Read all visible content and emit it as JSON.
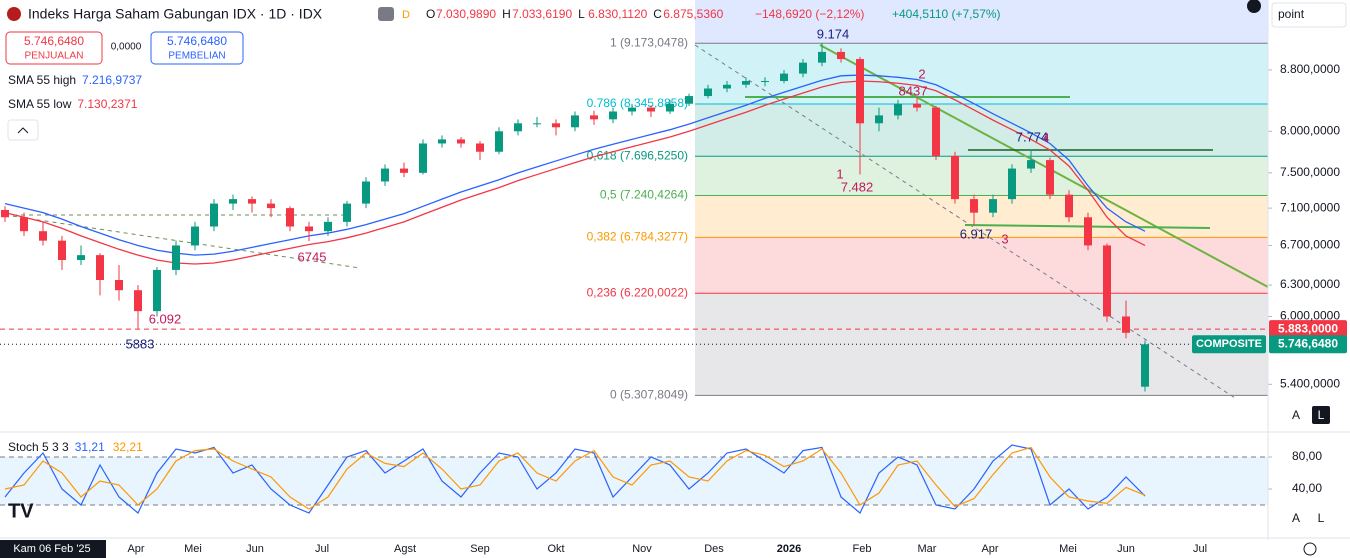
{
  "ui": {
    "symbol": "Indeks Harga Saham Gabungan IDX · 1D · IDX",
    "badge": "D",
    "ohlc": [
      {
        "k": "O",
        "v": "7.030,9890"
      },
      {
        "k": "H",
        "v": "7.033,6190"
      },
      {
        "k": "L",
        "v": "6.830,1120"
      },
      {
        "k": "C",
        "v": "6.875,5360"
      }
    ],
    "change": "−148,6920 (−2,12%)",
    "change2": "+404,5110 (+7,57%)",
    "sell_price": "5.746,6480",
    "sell_label": "PENJUALAN",
    "spread": "0,0000",
    "buy_price": "5.746,6480",
    "buy_label": "PEMBELIAN",
    "menu": "point",
    "buttons": [
      "A",
      "L"
    ]
  },
  "chart_data": {
    "type": "candlestick",
    "log": true,
    "up_color": "#089981",
    "down_color": "#f23645",
    "ylim": [
      5030,
      9810
    ],
    "yticks": [
      {
        "value": 8800,
        "label": "8.800,0000"
      },
      {
        "value": 8000,
        "label": "8.000,0000"
      },
      {
        "value": 7500,
        "label": "7.500,0000"
      },
      {
        "value": 7100,
        "label": "7.100,0000"
      },
      {
        "value": 6700,
        "label": "6.700,0000"
      },
      {
        "value": 6300,
        "label": "6.300,0000"
      },
      {
        "value": 6000,
        "label": "6.000,0000"
      },
      {
        "value": 5400,
        "label": "5.400,0000"
      }
    ],
    "x_labels": [
      "Kam 06 Feb '25",
      "Apr",
      "Mei",
      "Jun",
      "Jul",
      "Agst",
      "Sep",
      "Okt",
      "Nov",
      "Des",
      "2026",
      "Feb",
      "Mar",
      "Apr",
      "Mei",
      "Jun",
      "Jul"
    ],
    "candles": [
      [
        7080,
        7120,
        6950,
        7000
      ],
      [
        7000,
        7050,
        6800,
        6850
      ],
      [
        6850,
        6950,
        6700,
        6750
      ],
      [
        6750,
        6800,
        6450,
        6550
      ],
      [
        6550,
        6700,
        6500,
        6600
      ],
      [
        6600,
        6620,
        6200,
        6350
      ],
      [
        6350,
        6500,
        6150,
        6250
      ],
      [
        6250,
        6300,
        5883,
        6050
      ],
      [
        6050,
        6480,
        6000,
        6450
      ],
      [
        6450,
        6750,
        6400,
        6700
      ],
      [
        6700,
        6950,
        6650,
        6900
      ],
      [
        6900,
        7200,
        6850,
        7150
      ],
      [
        7150,
        7250,
        7080,
        7200
      ],
      [
        7200,
        7230,
        7050,
        7150
      ],
      [
        7150,
        7200,
        7000,
        7100
      ],
      [
        7100,
        7120,
        6850,
        6900
      ],
      [
        6900,
        6950,
        6745,
        6850
      ],
      [
        6850,
        7000,
        6800,
        6950
      ],
      [
        6950,
        7180,
        6900,
        7150
      ],
      [
        7150,
        7450,
        7100,
        7400
      ],
      [
        7400,
        7600,
        7350,
        7550
      ],
      [
        7550,
        7620,
        7450,
        7500
      ],
      [
        7500,
        7900,
        7480,
        7850
      ],
      [
        7850,
        7950,
        7800,
        7900
      ],
      [
        7900,
        7930,
        7800,
        7850
      ],
      [
        7850,
        7880,
        7650,
        7750
      ],
      [
        7750,
        8050,
        7720,
        8000
      ],
      [
        8000,
        8150,
        7950,
        8100
      ],
      [
        8100,
        8180,
        8050,
        8100
      ],
      [
        8100,
        8150,
        7950,
        8050
      ],
      [
        8050,
        8250,
        8000,
        8200
      ],
      [
        8200,
        8260,
        8080,
        8150
      ],
      [
        8150,
        8300,
        8100,
        8250
      ],
      [
        8250,
        8350,
        8200,
        8300
      ],
      [
        8300,
        8330,
        8180,
        8250
      ],
      [
        8250,
        8400,
        8220,
        8350
      ],
      [
        8350,
        8480,
        8320,
        8450
      ],
      [
        8450,
        8600,
        8420,
        8550
      ],
      [
        8550,
        8650,
        8500,
        8600
      ],
      [
        8600,
        8700,
        8560,
        8650
      ],
      [
        8650,
        8700,
        8580,
        8650
      ],
      [
        8650,
        8800,
        8620,
        8750
      ],
      [
        8750,
        8950,
        8700,
        8900
      ],
      [
        8900,
        9174,
        8850,
        9050
      ],
      [
        9050,
        9100,
        8900,
        8950
      ],
      [
        8950,
        8980,
        7482,
        8100
      ],
      [
        8100,
        8300,
        8000,
        8200
      ],
      [
        8200,
        8400,
        8150,
        8350
      ],
      [
        8350,
        8437,
        8250,
        8300
      ],
      [
        8300,
        8320,
        7650,
        7700
      ],
      [
        7700,
        7750,
        7150,
        7200
      ],
      [
        7200,
        7250,
        6917,
        7050
      ],
      [
        7050,
        7250,
        7000,
        7200
      ],
      [
        7200,
        7600,
        7150,
        7550
      ],
      [
        7550,
        7774,
        7500,
        7650
      ],
      [
        7650,
        7680,
        7200,
        7250
      ],
      [
        7250,
        7300,
        6950,
        7000
      ],
      [
        7000,
        7050,
        6650,
        6700
      ],
      [
        6700,
        6720,
        5950,
        6000
      ],
      [
        6000,
        6150,
        5800,
        5850
      ],
      [
        5380,
        5780,
        5340,
        5746.648
      ]
    ],
    "series": [
      {
        "name": "SMA 55 high",
        "legend_value": "7.216,9737",
        "color": "#2962ff",
        "values": [
          7150,
          7100,
          7050,
          6980,
          6900,
          6830,
          6760,
          6700,
          6650,
          6620,
          6600,
          6610,
          6640,
          6680,
          6720,
          6760,
          6800,
          6830,
          6870,
          6920,
          6980,
          7040,
          7120,
          7200,
          7280,
          7350,
          7420,
          7500,
          7570,
          7640,
          7710,
          7780,
          7840,
          7900,
          7960,
          8020,
          8090,
          8170,
          8250,
          8330,
          8420,
          8500,
          8580,
          8660,
          8720,
          8730,
          8720,
          8700,
          8670,
          8600,
          8480,
          8350,
          8220,
          8100,
          7980,
          7850,
          7650,
          7350,
          7100,
          6950,
          6850
        ]
      },
      {
        "name": "SMA 55 low",
        "legend_value": "7.130,2371",
        "color": "#f23645",
        "values": [
          7050,
          7000,
          6950,
          6880,
          6800,
          6730,
          6660,
          6600,
          6550,
          6520,
          6510,
          6520,
          6550,
          6590,
          6630,
          6670,
          6710,
          6740,
          6780,
          6830,
          6890,
          6950,
          7030,
          7110,
          7190,
          7260,
          7330,
          7410,
          7480,
          7550,
          7620,
          7690,
          7750,
          7810,
          7870,
          7930,
          8000,
          8080,
          8160,
          8240,
          8330,
          8410,
          8490,
          8570,
          8630,
          8650,
          8640,
          8620,
          8590,
          8520,
          8400,
          8270,
          8140,
          8020,
          7900,
          7770,
          7580,
          7300,
          7000,
          6800,
          6700
        ]
      }
    ],
    "fib": [
      {
        "value": 9173.0478,
        "label": "1 (9.173,0478)",
        "color": "#787b86"
      },
      {
        "value": 8345.8858,
        "label": "0.786 (8.345,8858)",
        "color": "#00bcd4"
      },
      {
        "value": 7696.525,
        "label": "0,618 (7.696,5250)",
        "color": "#089981"
      },
      {
        "value": 7240.4264,
        "label": "0,5 (7.240,4264)",
        "color": "#4caf50"
      },
      {
        "value": 6784.3277,
        "label": "0,382 (6.784,3277)",
        "color": "#ff9800"
      },
      {
        "value": 6220.0022,
        "label": "0,236 (6.220,0022)",
        "color": "#f23645"
      },
      {
        "value": 5307.8049,
        "label": "0 (5.307,8049)",
        "color": "#787b86"
      }
    ],
    "price_lines": [
      {
        "value": 5883,
        "label": "5.883,0000",
        "color": "#f23645"
      },
      {
        "value": 5746.648,
        "label": "5.746,6480",
        "name": "COMPOSITE",
        "color": "#089981"
      }
    ],
    "annotations": [
      {
        "text": "9.174",
        "color": "#1a237e"
      },
      {
        "text": "2",
        "color": "#c2185b"
      },
      {
        "text": "8437",
        "color": "#c2185b"
      },
      {
        "text": "1",
        "color": "#c2185b"
      },
      {
        "text": "7.482",
        "color": "#c2185b"
      },
      {
        "text": "7.774",
        "color": "#1a237e"
      },
      {
        "text": "4",
        "color": "#c2185b"
      },
      {
        "text": "6.917",
        "color": "#1a237e"
      },
      {
        "text": "3",
        "color": "#c2185b"
      },
      {
        "text": "6745",
        "color": "#c2185b"
      },
      {
        "text": "6.092",
        "color": "#c2185b"
      },
      {
        "text": "5883",
        "color": "#1a237e"
      }
    ],
    "stoch": {
      "name": "Stoch 5 3 3",
      "ylim": [
        0,
        100
      ],
      "yticks": [
        {
          "value": 80,
          "label": "80,00"
        },
        {
          "value": 40,
          "label": "40,00"
        }
      ],
      "band": [
        20,
        80
      ],
      "series": [
        {
          "label": "31,21",
          "color": "#2962ff",
          "values": [
            30,
            60,
            85,
            40,
            20,
            70,
            30,
            10,
            60,
            90,
            85,
            92,
            60,
            70,
            40,
            20,
            10,
            45,
            80,
            88,
            60,
            75,
            90,
            50,
            30,
            60,
            85,
            80,
            40,
            60,
            90,
            85,
            30,
            55,
            80,
            70,
            40,
            60,
            85,
            90,
            75,
            60,
            88,
            92,
            30,
            10,
            60,
            80,
            70,
            20,
            15,
            40,
            75,
            95,
            90,
            20,
            40,
            15,
            30,
            55,
            31.21
          ]
        },
        {
          "label": "32,21",
          "color": "#ff9800",
          "values": [
            40,
            45,
            75,
            60,
            30,
            50,
            45,
            20,
            40,
            75,
            88,
            90,
            75,
            65,
            55,
            30,
            15,
            30,
            65,
            85,
            72,
            68,
            85,
            65,
            40,
            45,
            75,
            85,
            60,
            50,
            75,
            88,
            55,
            45,
            70,
            75,
            55,
            50,
            75,
            88,
            82,
            68,
            75,
            90,
            60,
            20,
            35,
            70,
            75,
            45,
            18,
            28,
            58,
            85,
            92,
            55,
            30,
            25,
            22,
            42,
            32.21
          ]
        }
      ]
    }
  }
}
